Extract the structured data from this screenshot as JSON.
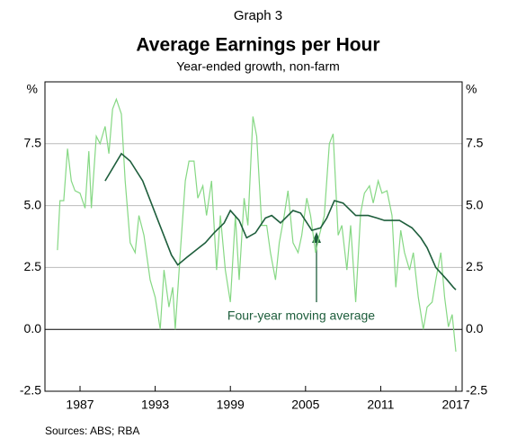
{
  "chart_data": {
    "type": "line",
    "graph_label": "Graph 3",
    "title": "Average Earnings per Hour",
    "subtitle": "Year-ended growth, non-farm",
    "y_unit_left": "%",
    "y_unit_right": "%",
    "annotation": "Four-year moving average",
    "source": "Sources:   ABS; RBA",
    "xlim": [
      1984.2,
      2017.5
    ],
    "xticks": [
      1987,
      1993,
      1999,
      2005,
      2011,
      2017
    ],
    "ylim": [
      -2.5,
      10
    ],
    "yticks": [
      7.5,
      {
        "value": 5,
        "label": "5.0"
      },
      2.5,
      {
        "value": 0,
        "label": "0.0"
      },
      -2.5
    ],
    "grid": true,
    "series": [
      {
        "name": "Year-ended growth",
        "color": "#86d884",
        "x": [
          1985.2,
          1985.4,
          1985.7,
          1986.0,
          1986.3,
          1986.6,
          1987.0,
          1987.4,
          1987.7,
          1987.9,
          1988.3,
          1988.6,
          1989.0,
          1989.3,
          1989.6,
          1989.9,
          1990.3,
          1990.6,
          1991.0,
          1991.4,
          1991.7,
          1992.1,
          1992.6,
          1993.0,
          1993.4,
          1993.7,
          1994.1,
          1994.4,
          1994.6,
          1995.0,
          1995.4,
          1995.7,
          1996.1,
          1996.4,
          1996.8,
          1997.1,
          1997.5,
          1997.9,
          1998.2,
          1998.6,
          1999.0,
          1999.4,
          1999.7,
          2000.1,
          2000.4,
          2000.8,
          2001.1,
          2001.5,
          2001.9,
          2002.2,
          2002.6,
          2002.9,
          2003.3,
          2003.6,
          2004.0,
          2004.4,
          2004.7,
          2005.1,
          2005.4,
          2005.8,
          2006.1,
          2006.5,
          2006.9,
          2007.2,
          2007.6,
          2007.9,
          2008.3,
          2008.6,
          2009.0,
          2009.4,
          2009.7,
          2010.1,
          2010.4,
          2010.8,
          2011.1,
          2011.5,
          2011.9,
          2012.2,
          2012.6,
          2012.9,
          2013.3,
          2013.6,
          2014.0,
          2014.4,
          2014.7,
          2015.1,
          2015.4,
          2015.8,
          2016.1,
          2016.4,
          2016.7,
          2017.0
        ],
        "values": [
          3.2,
          5.2,
          5.2,
          7.3,
          6.0,
          5.6,
          5.5,
          4.9,
          7.2,
          4.9,
          7.8,
          7.5,
          8.2,
          7.1,
          8.9,
          9.3,
          8.7,
          6.0,
          3.5,
          3.1,
          4.6,
          3.8,
          2.0,
          1.3,
          0.0,
          2.4,
          0.9,
          1.7,
          0.0,
          3.1,
          6.0,
          6.8,
          6.8,
          5.3,
          5.8,
          4.6,
          6.0,
          2.4,
          4.6,
          2.4,
          1.1,
          4.6,
          2.0,
          5.3,
          4.2,
          8.6,
          7.8,
          4.2,
          4.2,
          3.1,
          2.0,
          3.5,
          4.6,
          5.6,
          3.5,
          3.1,
          3.8,
          5.3,
          4.6,
          3.1,
          3.8,
          4.6,
          7.5,
          7.9,
          3.8,
          4.2,
          2.4,
          4.2,
          1.1,
          4.7,
          5.5,
          5.8,
          5.1,
          6.0,
          5.5,
          5.6,
          4.6,
          1.7,
          4.0,
          3.1,
          2.4,
          3.1,
          1.3,
          0.0,
          0.9,
          1.1,
          2.0,
          3.1,
          1.3,
          0.1,
          0.6,
          -0.9
        ]
      },
      {
        "name": "Four-year moving average",
        "color": "#1e5e3c",
        "x": [
          1989.0,
          1990.3,
          1991.0,
          1992.0,
          1993.3,
          1994.3,
          1994.8,
          1995.5,
          1996.5,
          1997.0,
          1997.7,
          1998.5,
          1999.0,
          1999.7,
          2000.3,
          2001.0,
          2001.8,
          2002.3,
          2003.0,
          2004.0,
          2004.6,
          2005.5,
          2006.2,
          2006.7,
          2007.3,
          2008.0,
          2009.0,
          2010.0,
          2010.7,
          2011.3,
          2012.5,
          2013.5,
          2014.2,
          2014.7,
          2015.4,
          2016.3,
          2016.8,
          2017.0
        ],
        "values": [
          6.0,
          7.1,
          6.8,
          6.0,
          4.3,
          3.0,
          2.6,
          2.9,
          3.3,
          3.5,
          3.9,
          4.3,
          4.8,
          4.4,
          3.7,
          3.9,
          4.5,
          4.6,
          4.3,
          4.8,
          4.7,
          4.0,
          4.1,
          4.5,
          5.2,
          5.1,
          4.6,
          4.6,
          4.5,
          4.4,
          4.4,
          4.1,
          3.7,
          3.3,
          2.5,
          2.0,
          1.7,
          1.6
        ]
      }
    ]
  }
}
